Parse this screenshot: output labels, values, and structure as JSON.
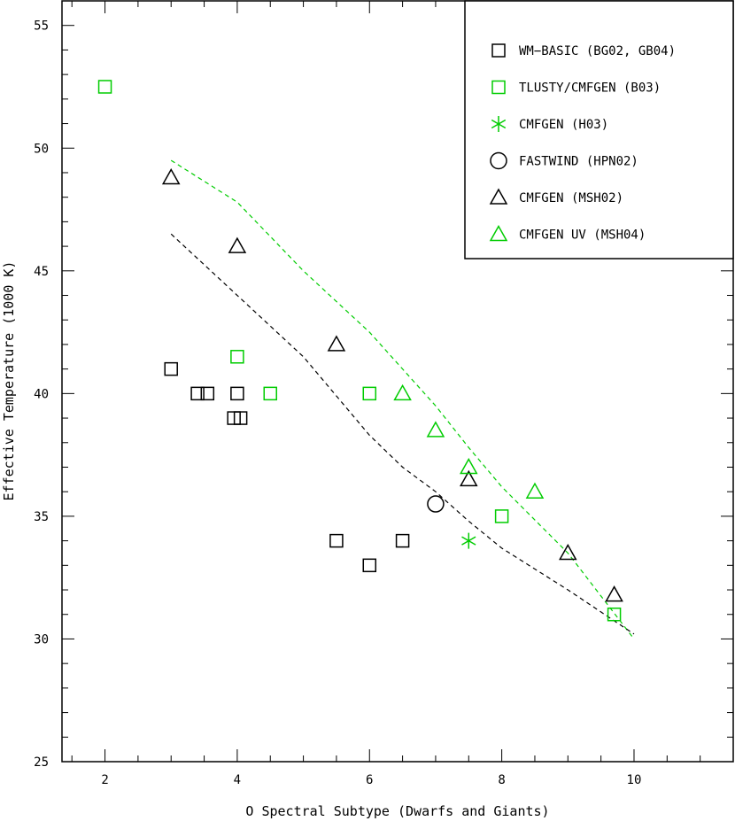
{
  "chart_data": {
    "type": "scatter",
    "title": "",
    "xlabel": "O Spectral Subtype (Dwarfs and Giants)",
    "ylabel": "Effective Temperature (1000 K)",
    "xlim": [
      1.35,
      11.5
    ],
    "ylim": [
      25,
      56
    ],
    "xticks": [
      2,
      4,
      6,
      8,
      10
    ],
    "yticks": [
      25,
      30,
      35,
      40,
      45,
      50,
      55
    ],
    "grid": false,
    "legend_position": "top-right",
    "series": [
      {
        "name": "WM−BASIC (BG02, GB04)",
        "marker": "square",
        "color": "#000000",
        "points": [
          [
            3,
            41
          ],
          [
            3.4,
            40
          ],
          [
            3.55,
            40
          ],
          [
            4,
            40
          ],
          [
            3.95,
            39
          ],
          [
            4.05,
            39
          ],
          [
            5.5,
            34
          ],
          [
            6,
            33
          ],
          [
            6.5,
            34
          ]
        ]
      },
      {
        "name": "TLUSTY/CMFGEN (B03)",
        "marker": "square",
        "color": "#00cc00",
        "points": [
          [
            2,
            52.5
          ],
          [
            4,
            41.5
          ],
          [
            4.5,
            40
          ],
          [
            6,
            40
          ],
          [
            8,
            35
          ],
          [
            9.7,
            31
          ]
        ]
      },
      {
        "name": "CMFGEN (H03)",
        "marker": "star",
        "color": "#00cc00",
        "points": [
          [
            7.5,
            34
          ]
        ]
      },
      {
        "name": "FASTWIND (HPN02)",
        "marker": "circle",
        "color": "#000000",
        "points": [
          [
            7,
            35.5
          ]
        ]
      },
      {
        "name": "CMFGEN (MSH02)",
        "marker": "triangle",
        "color": "#000000",
        "points": [
          [
            3,
            48.8
          ],
          [
            4,
            46
          ],
          [
            5.5,
            42
          ],
          [
            7.5,
            36.5
          ],
          [
            9,
            33.5
          ],
          [
            9.7,
            31.8
          ]
        ]
      },
      {
        "name": "CMFGEN UV (MSH04)",
        "marker": "triangle",
        "color": "#00cc00",
        "points": [
          [
            6.5,
            40
          ],
          [
            7,
            38.5
          ],
          [
            7.5,
            37
          ],
          [
            8.5,
            36
          ]
        ]
      }
    ],
    "lines": [
      {
        "style": "dashed",
        "color": "#00cc00",
        "points": [
          [
            3,
            49.5
          ],
          [
            4,
            47.8
          ],
          [
            5,
            45
          ],
          [
            6,
            42.5
          ],
          [
            6.5,
            41
          ],
          [
            7,
            39.5
          ],
          [
            7.5,
            37.8
          ],
          [
            8,
            36.2
          ],
          [
            9,
            33.5
          ],
          [
            10,
            30
          ]
        ]
      },
      {
        "style": "dashed",
        "color": "#000000",
        "points": [
          [
            3,
            46.5
          ],
          [
            4,
            44
          ],
          [
            5,
            41.5
          ],
          [
            6,
            38.3
          ],
          [
            6.5,
            37
          ],
          [
            7,
            36
          ],
          [
            7.5,
            34.8
          ],
          [
            8,
            33.7
          ],
          [
            9,
            32
          ],
          [
            10,
            30.2
          ]
        ]
      }
    ]
  }
}
